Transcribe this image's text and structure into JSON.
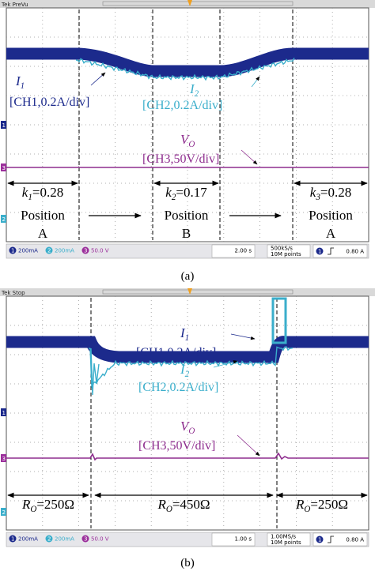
{
  "panels": [
    {
      "caption": "(a)",
      "header": "Tek PreVu",
      "traces": [
        {
          "symbol": "I",
          "subscript": "1",
          "scale": "[CH1,0.2A/div]"
        },
        {
          "symbol": "I",
          "subscript": "2",
          "scale": "[CH2,0.2A/div]"
        },
        {
          "symbol": "V",
          "subscript": "O",
          "scale": "[CH3,50V/div]"
        }
      ],
      "channel_markers": [
        "1",
        "3",
        "2"
      ],
      "intervals": [
        {
          "symbol": "k",
          "subscript": "1",
          "value": "=0.28",
          "position": "Position",
          "label": "A"
        },
        {
          "symbol": "k",
          "subscript": "2",
          "value": "=0.17",
          "position": "Position",
          "label": "B"
        },
        {
          "symbol": "k",
          "subscript": "3",
          "value": "=0.28",
          "position": "Position",
          "label": "A"
        }
      ],
      "status_bar": {
        "channels": [
          {
            "number": "1",
            "scale": "200mA"
          },
          {
            "number": "2",
            "scale": "200mA"
          },
          {
            "number": "3",
            "scale": "50.0 V"
          }
        ],
        "timebase": "2.00 s",
        "sample_rate": "500kS/s",
        "record_length": "10M points",
        "trigger_channel": "1",
        "trigger_level": "0.80 A"
      }
    },
    {
      "caption": "(b)",
      "header": "Tek Stop",
      "traces": [
        {
          "symbol": "I",
          "subscript": "1",
          "scale": "[CH1,0.2A/div]"
        },
        {
          "symbol": "I",
          "subscript": "2",
          "scale": "[CH2,0.2A/div]"
        },
        {
          "symbol": "V",
          "subscript": "O",
          "scale": "[CH3,50V/div]"
        }
      ],
      "channel_markers": [
        "1",
        "3",
        "2"
      ],
      "intervals": [
        {
          "symbol": "R",
          "subscript": "O",
          "value": "=250Ω"
        },
        {
          "symbol": "R",
          "subscript": "O",
          "value": "=450Ω"
        },
        {
          "symbol": "R",
          "subscript": "O",
          "value": "=250Ω"
        }
      ],
      "status_bar": {
        "channels": [
          {
            "number": "1",
            "scale": "200mA"
          },
          {
            "number": "2",
            "scale": "200mA"
          },
          {
            "number": "3",
            "scale": "50.0 V"
          }
        ],
        "timebase": "1.00 s",
        "sample_rate": "1.00MS/s",
        "record_length": "10M points",
        "trigger_channel": "1",
        "trigger_level": "0.80 A"
      }
    }
  ]
}
